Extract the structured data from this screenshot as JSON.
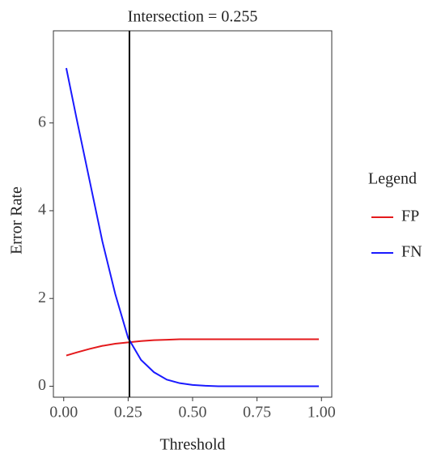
{
  "chart_data": {
    "type": "line",
    "title": "Intersection = 0.255",
    "x_label": "Threshold",
    "y_label": "Error Rate",
    "legend_title": "Legend",
    "legend": "right",
    "x": [
      0.01,
      0.05,
      0.1,
      0.15,
      0.2,
      0.25,
      0.3,
      0.35,
      0.4,
      0.45,
      0.5,
      0.55,
      0.6,
      0.65,
      0.7,
      0.75,
      0.8,
      0.85,
      0.9,
      0.95,
      0.99
    ],
    "series": [
      {
        "name": "FP",
        "color": "#e41a1c",
        "values": [
          0.7,
          0.77,
          0.85,
          0.92,
          0.97,
          1.0,
          1.03,
          1.05,
          1.06,
          1.07,
          1.07,
          1.07,
          1.07,
          1.07,
          1.07,
          1.07,
          1.07,
          1.07,
          1.07,
          1.07,
          1.07
        ]
      },
      {
        "name": "FN",
        "color": "#1a1aff",
        "values": [
          7.25,
          6.1,
          4.7,
          3.3,
          2.1,
          1.1,
          0.6,
          0.32,
          0.15,
          0.07,
          0.03,
          0.01,
          0,
          0,
          0,
          0,
          0,
          0,
          0,
          0,
          0
        ]
      }
    ],
    "vline": 0.255,
    "xlim": [
      -0.04,
      1.04
    ],
    "ylim": [
      -0.25,
      8.1
    ],
    "xticks": [
      {
        "value": 0,
        "label": "0.00"
      },
      {
        "value": 0.25,
        "label": "0.25"
      },
      {
        "value": 0.5,
        "label": "0.50"
      },
      {
        "value": 0.75,
        "label": "0.75"
      },
      {
        "value": 1,
        "label": "1.00"
      }
    ],
    "yticks": [
      0,
      2,
      4,
      6
    ]
  }
}
